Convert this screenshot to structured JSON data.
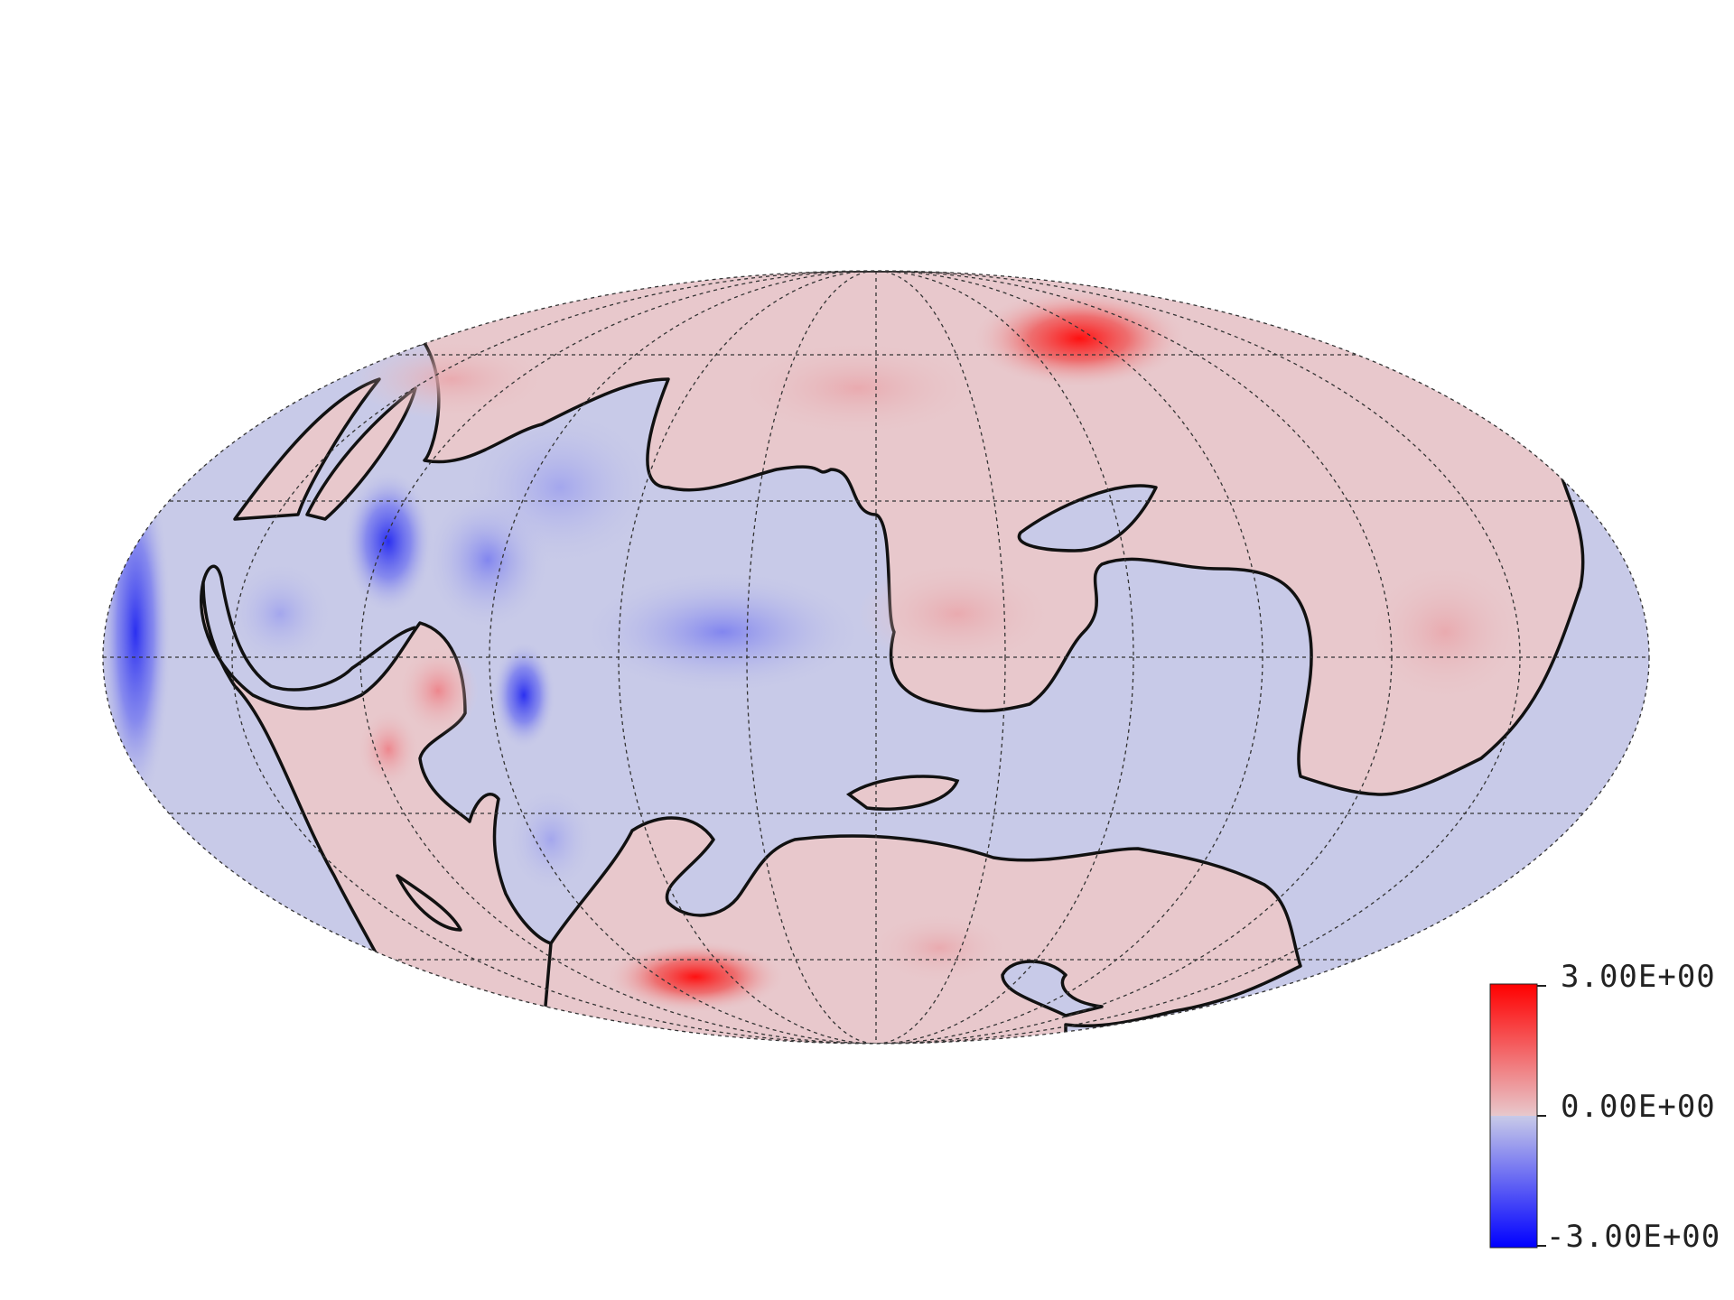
{
  "projection": "Mollweide",
  "background_color": "#ffffff",
  "field": {
    "description": "signed scalar field on sphere, diverging colormap",
    "positive_color": "#ff0000",
    "zero_positive_color": "#e8c8cc",
    "zero_negative_color": "#c8cae8",
    "negative_color": "#0000ff",
    "contour_color": "#111111",
    "graticule_color": "#333333"
  },
  "colorbar": {
    "max_label": "3.00E+00",
    "mid_label": "0.00E+00",
    "min_label": "-3.00E+00",
    "max_value": 3.0,
    "mid_value": 0.0,
    "min_value": -3.0,
    "orientation": "vertical",
    "position": "bottom-right"
  }
}
